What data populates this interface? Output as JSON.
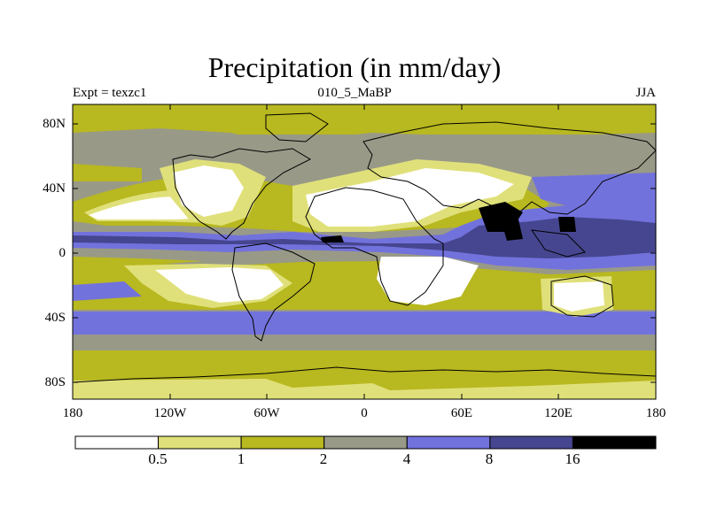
{
  "title": "Precipitation (in mm/day)",
  "subtitle_left": "Expt = texzc1",
  "subtitle_center": "010_5_MaBP",
  "subtitle_right": "JJA",
  "y_ticks": [
    "80N",
    "40N",
    "0",
    "40S",
    "80S"
  ],
  "x_ticks": [
    "180",
    "120W",
    "60W",
    "0",
    "60E",
    "120E",
    "180"
  ],
  "colorbar": {
    "labels": [
      "0.5",
      "1",
      "2",
      "4",
      "8",
      "16"
    ],
    "colors": [
      "#ffffff",
      "#e0e07a",
      "#b8b820",
      "#999988",
      "#7272dd",
      "#464690",
      "#000000"
    ]
  },
  "map": {
    "type": "filled-contour",
    "projection": "cylindrical equidistant",
    "lon_range": [
      -180,
      180
    ],
    "lat_range": [
      -90,
      90
    ],
    "coastlines": true
  }
}
